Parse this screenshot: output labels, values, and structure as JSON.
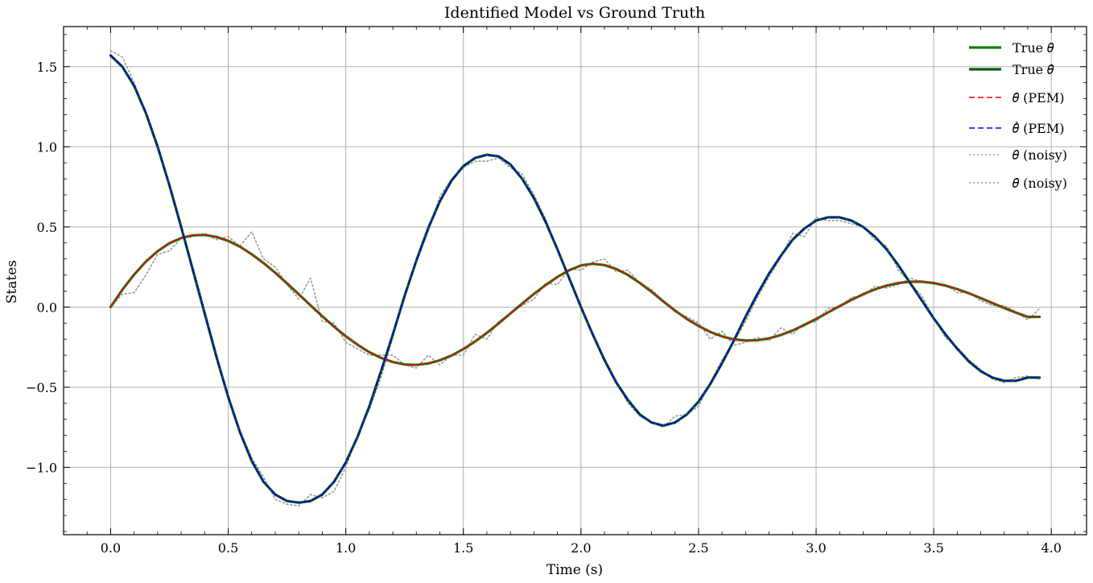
{
  "chart_data": {
    "type": "line",
    "title": "Identified Model vs Ground Truth",
    "xlabel": "Time (s)",
    "ylabel": "States",
    "xlim": [
      -0.2,
      4.15
    ],
    "ylim": [
      -1.42,
      1.75
    ],
    "x_ticks": [
      0.0,
      0.5,
      1.0,
      1.5,
      2.0,
      2.5,
      3.0,
      3.5,
      4.0
    ],
    "x_tick_labels": [
      "0.0",
      "0.5",
      "1.0",
      "1.5",
      "2.0",
      "2.5",
      "3.0",
      "3.5",
      "4.0"
    ],
    "y_ticks": [
      -1.0,
      -0.5,
      0.0,
      0.5,
      1.0,
      1.5
    ],
    "y_tick_labels": [
      "−1.0",
      "−0.5",
      "0.0",
      "0.5",
      "1.0",
      "1.5"
    ],
    "grid": true,
    "legend_position": "top-right",
    "x": [
      0.0,
      0.05,
      0.1,
      0.15,
      0.2,
      0.25,
      0.3,
      0.35,
      0.4,
      0.45,
      0.5,
      0.55,
      0.6,
      0.65,
      0.7,
      0.75,
      0.8,
      0.85,
      0.9,
      0.95,
      1.0,
      1.05,
      1.1,
      1.15,
      1.2,
      1.25,
      1.3,
      1.35,
      1.4,
      1.45,
      1.5,
      1.55,
      1.6,
      1.65,
      1.7,
      1.75,
      1.8,
      1.85,
      1.9,
      1.95,
      2.0,
      2.05,
      2.1,
      2.15,
      2.2,
      2.25,
      2.3,
      2.35,
      2.4,
      2.45,
      2.5,
      2.55,
      2.6,
      2.65,
      2.7,
      2.75,
      2.8,
      2.85,
      2.9,
      2.95,
      3.0,
      3.05,
      3.1,
      3.15,
      3.2,
      3.25,
      3.3,
      3.35,
      3.4,
      3.45,
      3.5,
      3.55,
      3.6,
      3.65,
      3.7,
      3.75,
      3.8,
      3.85,
      3.9,
      3.95
    ],
    "series": [
      {
        "name": "True 𝜃",
        "color": "#117a11",
        "style": "solid",
        "width": 3.2,
        "values": [
          0.0,
          0.108,
          0.203,
          0.284,
          0.349,
          0.398,
          0.431,
          0.448,
          0.45,
          0.438,
          0.413,
          0.377,
          0.33,
          0.275,
          0.214,
          0.148,
          0.08,
          0.011,
          -0.057,
          -0.122,
          -0.182,
          -0.235,
          -0.281,
          -0.317,
          -0.343,
          -0.358,
          -0.361,
          -0.352,
          -0.332,
          -0.302,
          -0.262,
          -0.215,
          -0.161,
          -0.102,
          -0.04,
          0.022,
          0.082,
          0.138,
          0.188,
          0.23,
          0.26,
          0.27,
          0.262,
          0.238,
          0.2,
          0.151,
          0.095,
          0.036,
          -0.022,
          -0.074,
          -0.118,
          -0.155,
          -0.183,
          -0.201,
          -0.209,
          -0.207,
          -0.195,
          -0.174,
          -0.146,
          -0.112,
          -0.074,
          -0.034,
          0.006,
          0.045,
          0.08,
          0.11,
          0.134,
          0.15,
          0.158,
          0.158,
          0.15,
          0.134,
          0.112,
          0.086,
          0.056,
          0.025,
          -0.006,
          -0.035,
          -0.061,
          -0.061
        ]
      },
      {
        "name": "True 𝜃̇",
        "color": "#0a5c0a",
        "style": "solid",
        "width": 3.2,
        "values": [
          1.57,
          1.5,
          1.38,
          1.21,
          1.0,
          0.76,
          0.5,
          0.23,
          -0.04,
          -0.31,
          -0.56,
          -0.78,
          -0.96,
          -1.09,
          -1.17,
          -1.21,
          -1.22,
          -1.21,
          -1.17,
          -1.09,
          -0.97,
          -0.81,
          -0.62,
          -0.4,
          -0.17,
          0.07,
          0.29,
          0.49,
          0.66,
          0.79,
          0.88,
          0.93,
          0.95,
          0.94,
          0.89,
          0.8,
          0.68,
          0.53,
          0.36,
          0.18,
          0.0,
          -0.17,
          -0.33,
          -0.47,
          -0.58,
          -0.67,
          -0.72,
          -0.74,
          -0.72,
          -0.67,
          -0.59,
          -0.48,
          -0.35,
          -0.21,
          -0.06,
          0.08,
          0.21,
          0.32,
          0.42,
          0.49,
          0.54,
          0.56,
          0.56,
          0.54,
          0.5,
          0.44,
          0.36,
          0.26,
          0.15,
          0.04,
          -0.07,
          -0.17,
          -0.26,
          -0.34,
          -0.4,
          -0.44,
          -0.46,
          -0.46,
          -0.44,
          -0.44
        ]
      },
      {
        "name": "𝜃̂ (PEM)",
        "color": "#ff0000",
        "style": "dashed",
        "width": 1.6,
        "values": [
          0.0,
          0.108,
          0.203,
          0.284,
          0.349,
          0.398,
          0.431,
          0.448,
          0.45,
          0.438,
          0.413,
          0.377,
          0.33,
          0.275,
          0.214,
          0.148,
          0.08,
          0.011,
          -0.057,
          -0.122,
          -0.182,
          -0.235,
          -0.281,
          -0.317,
          -0.343,
          -0.358,
          -0.361,
          -0.352,
          -0.332,
          -0.302,
          -0.262,
          -0.215,
          -0.161,
          -0.102,
          -0.04,
          0.022,
          0.082,
          0.138,
          0.188,
          0.23,
          0.26,
          0.27,
          0.262,
          0.238,
          0.2,
          0.151,
          0.095,
          0.036,
          -0.022,
          -0.074,
          -0.118,
          -0.155,
          -0.183,
          -0.201,
          -0.209,
          -0.207,
          -0.195,
          -0.174,
          -0.146,
          -0.112,
          -0.074,
          -0.034,
          0.006,
          0.045,
          0.08,
          0.11,
          0.134,
          0.15,
          0.158,
          0.158,
          0.15,
          0.134,
          0.112,
          0.086,
          0.056,
          0.025,
          -0.006,
          -0.035,
          -0.061,
          -0.061
        ]
      },
      {
        "name": "𝜃̂̇ (PEM)",
        "color": "#0000ff",
        "style": "dashed",
        "width": 1.6,
        "values": [
          1.57,
          1.5,
          1.38,
          1.21,
          1.0,
          0.76,
          0.5,
          0.23,
          -0.04,
          -0.31,
          -0.56,
          -0.78,
          -0.96,
          -1.09,
          -1.17,
          -1.21,
          -1.22,
          -1.21,
          -1.17,
          -1.09,
          -0.97,
          -0.81,
          -0.62,
          -0.4,
          -0.17,
          0.07,
          0.29,
          0.49,
          0.66,
          0.79,
          0.88,
          0.93,
          0.95,
          0.94,
          0.89,
          0.8,
          0.68,
          0.53,
          0.36,
          0.18,
          0.0,
          -0.17,
          -0.33,
          -0.47,
          -0.58,
          -0.67,
          -0.72,
          -0.74,
          -0.72,
          -0.67,
          -0.59,
          -0.48,
          -0.35,
          -0.21,
          -0.06,
          0.08,
          0.21,
          0.32,
          0.42,
          0.49,
          0.54,
          0.56,
          0.56,
          0.54,
          0.5,
          0.44,
          0.36,
          0.26,
          0.15,
          0.04,
          -0.07,
          -0.17,
          -0.26,
          -0.34,
          -0.4,
          -0.44,
          -0.46,
          -0.46,
          -0.44,
          -0.44
        ]
      },
      {
        "name": "𝜃 (noisy)",
        "color": "#999999",
        "style": "dotted",
        "width": 1.6,
        "values": [
          0.0,
          0.08,
          0.09,
          0.2,
          0.33,
          0.35,
          0.43,
          0.44,
          0.46,
          0.42,
          0.44,
          0.38,
          0.47,
          0.3,
          0.25,
          0.14,
          0.05,
          0.18,
          -0.09,
          -0.1,
          -0.22,
          -0.26,
          -0.3,
          -0.3,
          -0.3,
          -0.36,
          -0.38,
          -0.3,
          -0.36,
          -0.3,
          -0.3,
          -0.17,
          -0.2,
          -0.09,
          -0.04,
          0.01,
          0.05,
          0.15,
          0.14,
          0.24,
          0.23,
          0.28,
          0.3,
          0.22,
          0.23,
          0.15,
          0.11,
          0.04,
          -0.03,
          -0.06,
          -0.1,
          -0.2,
          -0.15,
          -0.24,
          -0.22,
          -0.19,
          -0.21,
          -0.13,
          -0.17,
          -0.1,
          -0.09,
          -0.01,
          0.0,
          0.06,
          0.07,
          0.13,
          0.12,
          0.14,
          0.18,
          0.16,
          0.15,
          0.14,
          0.09,
          0.09,
          0.04,
          0.01,
          0.01,
          -0.03,
          -0.08,
          -0.01
        ]
      },
      {
        "name": "𝜃̇ (noisy)",
        "color": "#999999",
        "style": "dotted",
        "width": 1.6,
        "values": [
          1.6,
          1.56,
          1.4,
          1.2,
          1.0,
          0.76,
          0.48,
          0.25,
          -0.02,
          -0.29,
          -0.57,
          -0.77,
          -0.94,
          -1.06,
          -1.2,
          -1.23,
          -1.24,
          -1.17,
          -1.19,
          -1.15,
          -1.0,
          -0.8,
          -0.64,
          -0.44,
          -0.19,
          0.08,
          0.28,
          0.47,
          0.69,
          0.8,
          0.87,
          0.91,
          0.91,
          0.93,
          0.87,
          0.83,
          0.7,
          0.55,
          0.35,
          0.17,
          0.01,
          -0.17,
          -0.32,
          -0.46,
          -0.6,
          -0.68,
          -0.72,
          -0.75,
          -0.68,
          -0.67,
          -0.62,
          -0.47,
          -0.33,
          -0.22,
          -0.09,
          0.06,
          0.19,
          0.31,
          0.46,
          0.44,
          0.56,
          0.54,
          0.54,
          0.52,
          0.5,
          0.42,
          0.38,
          0.23,
          0.15,
          0.07,
          -0.07,
          -0.19,
          -0.25,
          -0.33,
          -0.39,
          -0.45,
          -0.47,
          -0.44,
          -0.43,
          -0.45
        ]
      }
    ]
  }
}
